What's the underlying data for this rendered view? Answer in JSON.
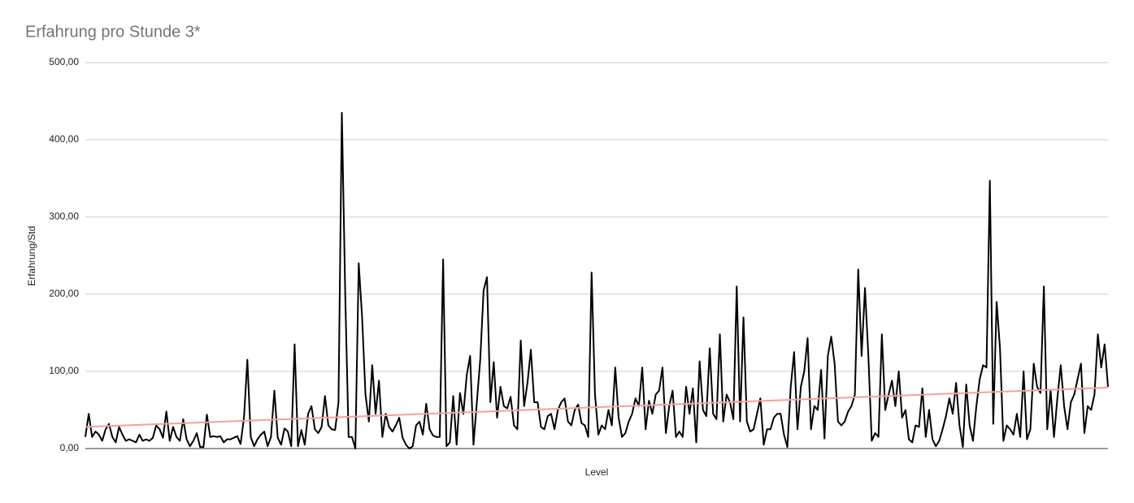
{
  "chart_data": {
    "type": "line",
    "title": "Erfahrung pro Stunde 3*",
    "x_label": "Level",
    "y_label": "Erfahrung/Std",
    "ylim": [
      0,
      500
    ],
    "yticks": [
      {
        "value": 0,
        "label": "0,00"
      },
      {
        "value": 100,
        "label": "100,00"
      },
      {
        "value": 200,
        "label": "200,00"
      },
      {
        "value": 300,
        "label": "300,00"
      },
      {
        "value": 400,
        "label": "400,00"
      },
      {
        "value": 500,
        "label": "500,00"
      }
    ],
    "grid": true,
    "series": [
      {
        "color": "#000000",
        "values": [
          15,
          45,
          15,
          22,
          18,
          10,
          25,
          32,
          15,
          8,
          28,
          18,
          10,
          12,
          10,
          8,
          18,
          10,
          12,
          10,
          14,
          30,
          25,
          14,
          48,
          10,
          28,
          15,
          10,
          38,
          12,
          3,
          10,
          20,
          2,
          2,
          44,
          15,
          16,
          15,
          16,
          8,
          12,
          12,
          14,
          16,
          6,
          40,
          115,
          15,
          3,
          12,
          18,
          22,
          3,
          15,
          75,
          14,
          5,
          26,
          22,
          3,
          135,
          3,
          24,
          5,
          45,
          55,
          25,
          20,
          28,
          68,
          30,
          25,
          24,
          60,
          435,
          200,
          15,
          15,
          0,
          240,
          170,
          70,
          35,
          108,
          45,
          88,
          15,
          45,
          28,
          22,
          30,
          40,
          14,
          5,
          0,
          3,
          30,
          35,
          18,
          58,
          25,
          17,
          15,
          15,
          245,
          3,
          8,
          68,
          5,
          72,
          45,
          95,
          120,
          5,
          60,
          115,
          205,
          222,
          60,
          112,
          40,
          80,
          55,
          52,
          67,
          30,
          25,
          140,
          55,
          85,
          128,
          60,
          60,
          28,
          25,
          42,
          45,
          25,
          50,
          60,
          65,
          35,
          30,
          50,
          57,
          33,
          30,
          15,
          228,
          70,
          18,
          30,
          25,
          50,
          30,
          105,
          40,
          15,
          20,
          35,
          45,
          65,
          55,
          105,
          25,
          62,
          45,
          70,
          75,
          105,
          20,
          55,
          75,
          15,
          22,
          15,
          80,
          45,
          78,
          8,
          113,
          50,
          42,
          130,
          45,
          38,
          148,
          35,
          70,
          60,
          38,
          210,
          35,
          170,
          35,
          22,
          25,
          45,
          65,
          5,
          25,
          25,
          40,
          45,
          45,
          18,
          2,
          80,
          125,
          25,
          80,
          100,
          143,
          25,
          55,
          50,
          102,
          13,
          120,
          145,
          110,
          35,
          30,
          35,
          48,
          55,
          70,
          232,
          120,
          208,
          120,
          10,
          20,
          15,
          148,
          50,
          70,
          88,
          55,
          100,
          40,
          50,
          12,
          8,
          30,
          28,
          78,
          15,
          50,
          12,
          3,
          10,
          25,
          42,
          65,
          45,
          85,
          30,
          2,
          83,
          30,
          10,
          55,
          90,
          108,
          105,
          347,
          32,
          190,
          130,
          10,
          30,
          25,
          18,
          45,
          15,
          100,
          12,
          25,
          110,
          80,
          72,
          210,
          25,
          75,
          15,
          65,
          108,
          55,
          25,
          60,
          70,
          90,
          110,
          20,
          55,
          50,
          70,
          148,
          105,
          135,
          80
        ]
      }
    ],
    "trendline": {
      "color": "#f4a0a0",
      "start": 28,
      "end": 79
    }
  }
}
